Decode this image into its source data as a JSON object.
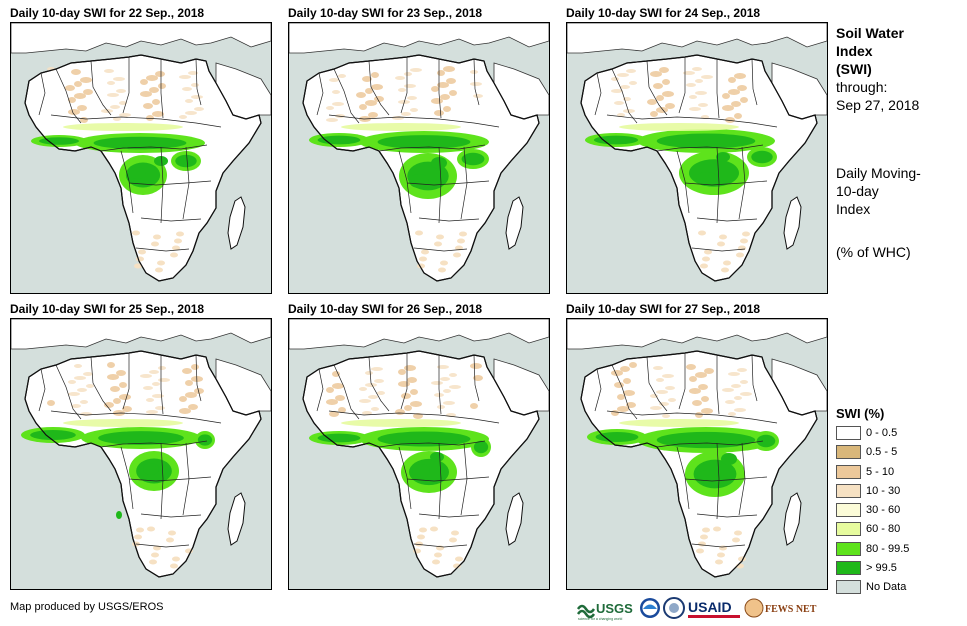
{
  "panels": [
    {
      "title": "Daily 10-day SWI for 22 Sep., 2018"
    },
    {
      "title": "Daily 10-day SWI for 23 Sep., 2018"
    },
    {
      "title": "Daily 10-day SWI for 24 Sep., 2018"
    },
    {
      "title": "Daily 10-day SWI for 25 Sep., 2018"
    },
    {
      "title": "Daily 10-day SWI for 26 Sep., 2018"
    },
    {
      "title": "Daily 10-day SWI for 27 Sep., 2018"
    }
  ],
  "side": {
    "title_line1": "Soil Water",
    "title_line2": "Index",
    "title_line3": "(SWI)",
    "through_label": "through:",
    "through_date": "Sep 27, 2018",
    "desc_line1": "Daily Moving-",
    "desc_line2": "10-day",
    "desc_line3": "Index",
    "unit": "(% of WHC)"
  },
  "legend": {
    "title": "SWI (%)",
    "items": [
      {
        "label": "0 - 0.5",
        "color": "#ffffff"
      },
      {
        "label": "0.5 - 5",
        "color": "#d9b77a"
      },
      {
        "label": "5 - 10",
        "color": "#ecc89a"
      },
      {
        "label": "10 - 30",
        "color": "#f6e1c3"
      },
      {
        "label": "30 - 60",
        "color": "#fbfbd8"
      },
      {
        "label": "60 - 80",
        "color": "#e6fb9e"
      },
      {
        "label": "80 - 99.5",
        "color": "#5ee31c"
      },
      {
        "label": "> 99.5",
        "color": "#1fb81a"
      },
      {
        "label": "No Data",
        "color": "#d4dfdc"
      }
    ]
  },
  "credit": "Map produced by USGS/EROS",
  "logos": {
    "usgs": "USGS",
    "usgs_tagline": "science for a changing world",
    "usaid": "USAID",
    "fewsnet": "FEWS NET"
  },
  "colors": {
    "sea": "#d4dfdc",
    "land": "#ffffff",
    "green_dark": "#1fb81a",
    "green_mid": "#5ee31c",
    "green_light": "#e6fb9e",
    "tan": "#ecc89a",
    "tan_light": "#f6e1c3"
  }
}
